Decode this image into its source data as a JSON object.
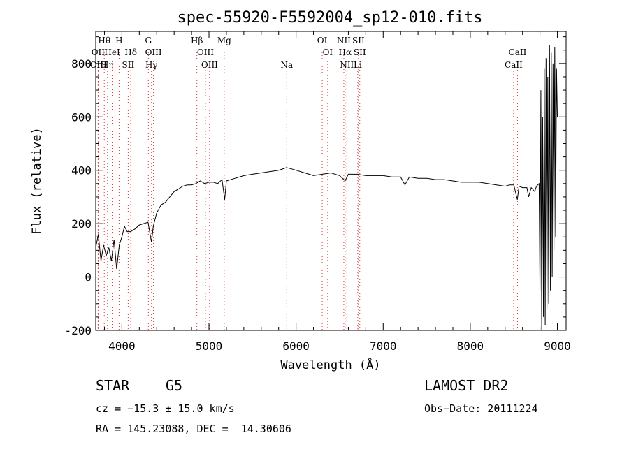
{
  "chart_data": {
    "type": "line",
    "title": "spec-55920-F5592004_sp12-010.fits",
    "xlabel": "Wavelength (Å)",
    "ylabel": "Flux (relative)",
    "xlim": [
      3700,
      9100
    ],
    "ylim": [
      -200,
      920
    ],
    "xticks": [
      4000,
      5000,
      6000,
      7000,
      8000,
      9000
    ],
    "yticks": [
      -200,
      0,
      200,
      400,
      600,
      800
    ],
    "grid": false,
    "series": [
      {
        "x": [
          3700,
          3730,
          3760,
          3790,
          3820,
          3850,
          3880,
          3910,
          3940,
          3970,
          4000,
          4030,
          4060,
          4100,
          4150,
          4200,
          4250,
          4300,
          4340,
          4360,
          4400,
          4450,
          4500,
          4550,
          4600,
          4650,
          4700,
          4750,
          4800,
          4850,
          4900,
          4950,
          5000,
          5050,
          5100,
          5150,
          5180,
          5200,
          5300,
          5400,
          5500,
          5600,
          5700,
          5800,
          5890,
          5950,
          6000,
          6100,
          6200,
          6300,
          6400,
          6500,
          6563,
          6600,
          6700,
          6800,
          6900,
          7000,
          7100,
          7200,
          7250,
          7300,
          7400,
          7500,
          7600,
          7700,
          7800,
          7900,
          8000,
          8100,
          8200,
          8300,
          8400,
          8450,
          8500,
          8540,
          8560,
          8600,
          8650,
          8670,
          8700,
          8740,
          8760,
          8790,
          8800,
          8810,
          8820,
          8830,
          8840,
          8850,
          8860,
          8870,
          8880,
          8890,
          8900,
          8910,
          8920,
          8930,
          8940,
          8950,
          8960,
          8970,
          8980,
          8990,
          9000
        ],
        "y": [
          110,
          160,
          60,
          120,
          80,
          110,
          60,
          140,
          30,
          120,
          150,
          190,
          170,
          170,
          180,
          195,
          200,
          205,
          130,
          190,
          240,
          270,
          280,
          300,
          320,
          330,
          340,
          345,
          345,
          350,
          360,
          350,
          355,
          355,
          350,
          365,
          290,
          360,
          370,
          380,
          385,
          390,
          395,
          400,
          410,
          405,
          400,
          390,
          380,
          385,
          390,
          380,
          360,
          385,
          385,
          380,
          380,
          380,
          375,
          375,
          345,
          375,
          370,
          370,
          365,
          365,
          360,
          355,
          355,
          355,
          350,
          345,
          340,
          345,
          345,
          290,
          340,
          335,
          335,
          300,
          335,
          320,
          340,
          350,
          -50,
          700,
          -200,
          600,
          -150,
          780,
          -180,
          820,
          -120,
          750,
          -100,
          870,
          -50,
          840,
          0,
          800,
          100,
          860,
          150,
          780,
          600
        ]
      }
    ],
    "line_marks": [
      {
        "label": "Hθ",
        "x": 3798,
        "row": 1
      },
      {
        "label": "OII",
        "x": 3727,
        "row": 2
      },
      {
        "label": "OIII",
        "x": 3730,
        "row": 3
      },
      {
        "label": "Hη",
        "x": 3835,
        "row": 3
      },
      {
        "label": "HeI",
        "x": 3889,
        "row": 2
      },
      {
        "label": "H",
        "x": 3968,
        "row": 1
      },
      {
        "label": "Hδ",
        "x": 4102,
        "row": 2
      },
      {
        "label": "SII",
        "x": 4072,
        "row": 3
      },
      {
        "label": "G",
        "x": 4304,
        "row": 1
      },
      {
        "label": "OIII",
        "x": 4363,
        "row": 2
      },
      {
        "label": "Hγ",
        "x": 4340,
        "row": 3
      },
      {
        "label": "Hβ",
        "x": 4861,
        "row": 1
      },
      {
        "label": "OIII",
        "x": 4959,
        "row": 2
      },
      {
        "label": "OIII",
        "x": 5007,
        "row": 3
      },
      {
        "label": "Mg",
        "x": 5175,
        "row": 1
      },
      {
        "label": "Na",
        "x": 5893,
        "row": 3
      },
      {
        "label": "OI",
        "x": 6300,
        "row": 1
      },
      {
        "label": "OI",
        "x": 6363,
        "row": 2
      },
      {
        "label": "NII",
        "x": 6548,
        "row": 1
      },
      {
        "label": "Hα",
        "x": 6563,
        "row": 2
      },
      {
        "label": "NII",
        "x": 6583,
        "row": 3
      },
      {
        "label": "SII",
        "x": 6716,
        "row": 1
      },
      {
        "label": "SII",
        "x": 6731,
        "row": 2
      },
      {
        "label": "Li",
        "x": 6708,
        "row": 3
      },
      {
        "label": "CaII",
        "x": 8542,
        "row": 2
      },
      {
        "label": "CaII",
        "x": 8498,
        "row": 3
      }
    ]
  },
  "info": {
    "class": "STAR",
    "subclass": "G5",
    "survey": "LAMOST DR2",
    "cz": "cz = −15.3 ± 15.0 km/s",
    "obs_date": "Obs−Date: 20111224",
    "coords": "RA = 145.23088, DEC =  14.30606"
  }
}
